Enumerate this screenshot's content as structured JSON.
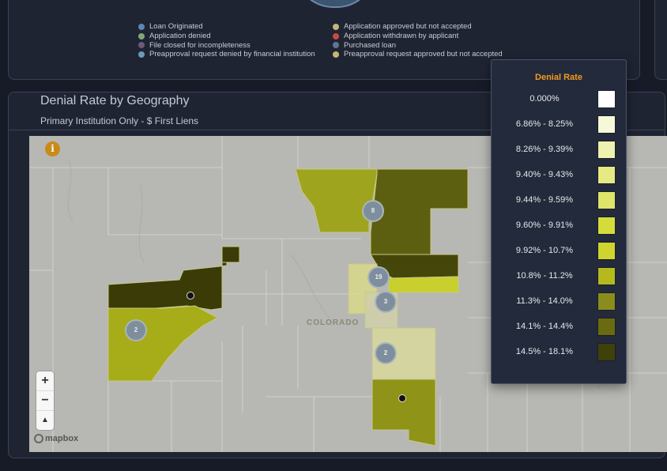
{
  "top_legend": {
    "left": [
      {
        "label": "Loan Originated",
        "color": "#5f86b3"
      },
      {
        "label": "Application denied",
        "color": "#7ea67a"
      },
      {
        "label": "File closed for incompleteness",
        "color": "#6d5a78"
      },
      {
        "label": "Preapproval request denied by financial institution",
        "color": "#6f98b9"
      }
    ],
    "right": [
      {
        "label": "Application approved but not accepted",
        "color": "#c8b27a"
      },
      {
        "label": "Application withdrawn by applicant",
        "color": "#c84a44"
      },
      {
        "label": "Purchased loan",
        "color": "#5f7691"
      },
      {
        "label": "Preapproval request approved but not accepted",
        "color": "#c9b672"
      }
    ]
  },
  "panel": {
    "title": "Denial Rate by Geography",
    "subtitle": "Primary Institution Only - $ First Liens"
  },
  "map": {
    "info_icon": "i",
    "state_label": "COLORADO",
    "zoom_in": "+",
    "zoom_out": "−",
    "compass": "▲",
    "attribution": "mapbox",
    "clusters": [
      "8",
      "19",
      "3",
      "2",
      "2"
    ]
  },
  "legend": {
    "title": "Denial Rate",
    "items": [
      {
        "label": "0.000%",
        "color": "#ffffff"
      },
      {
        "label": "6.86% - 8.25%",
        "color": "#f7f8d9"
      },
      {
        "label": "8.26% - 9.39%",
        "color": "#eef1b0"
      },
      {
        "label": "9.40% - 9.43%",
        "color": "#e6ea82"
      },
      {
        "label": "9.44% - 9.59%",
        "color": "#dfe46b"
      },
      {
        "label": "9.60% - 9.91%",
        "color": "#d4dc3b"
      },
      {
        "label": "9.92% - 10.7%",
        "color": "#cfd52e"
      },
      {
        "label": "10.8% - 11.2%",
        "color": "#b5b91e"
      },
      {
        "label": "11.3% - 14.0%",
        "color": "#8a8c1e"
      },
      {
        "label": "14.1% - 14.4%",
        "color": "#6a6b10"
      },
      {
        "label": "14.5% - 18.1%",
        "color": "#3f400a"
      }
    ]
  }
}
